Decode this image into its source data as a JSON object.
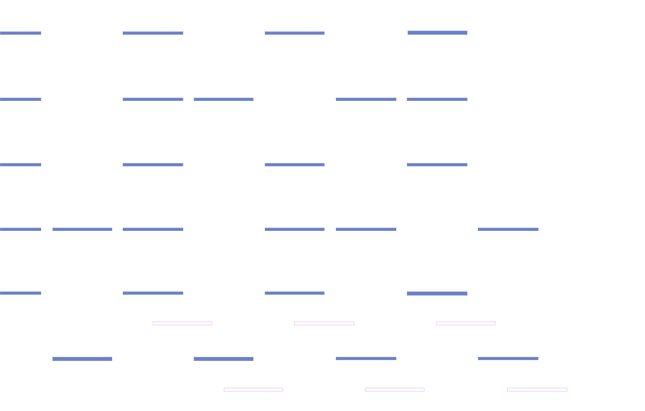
{
  "colors": {
    "bar": "#6a80c8",
    "outline": "#f0d8f8",
    "background": "#ffffff"
  }
}
